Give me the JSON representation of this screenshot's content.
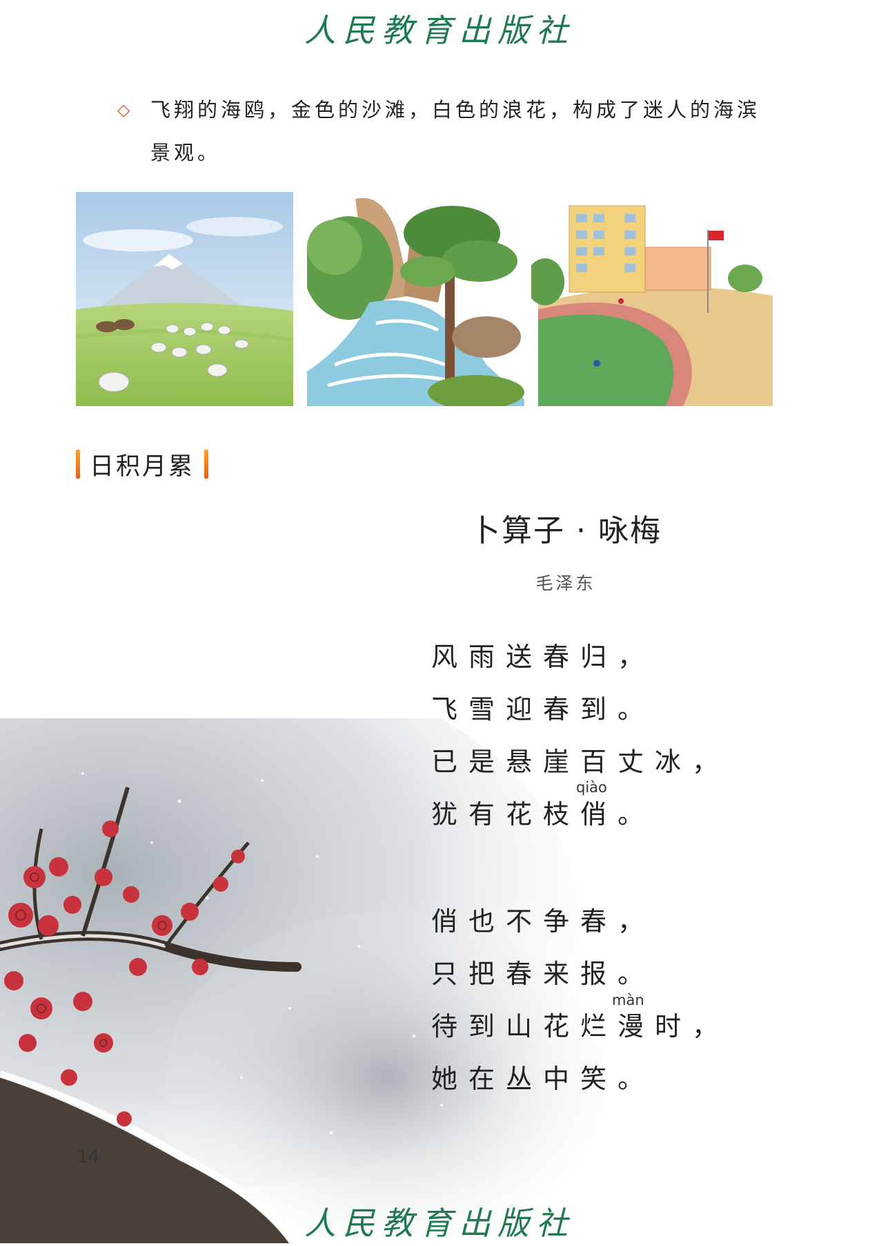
{
  "header": {
    "watermark": "人民教育出版社"
  },
  "exercise": {
    "bullet": "◇",
    "text": "飞翔的海鸥，金色的沙滩，白色的浪花，构成了迷人的海滨景观。"
  },
  "section": {
    "title": "日积月累"
  },
  "poem": {
    "title": "卜算子 · 咏梅",
    "author": "毛泽东",
    "lines": [
      "风雨送春归，",
      "飞雪迎春到。",
      "已是悬崖百丈冰，",
      "犹有花枝俏。",
      "俏也不争春，",
      "只把春来报。",
      "待到山花烂漫时，",
      "她在丛中笑。"
    ],
    "pinyin": {
      "qiao": "qiào",
      "man": "màn"
    }
  },
  "footer": {
    "page_number": "14",
    "watermark": "人民教育出版社"
  },
  "colors": {
    "watermark": "#1f7a4f",
    "bullet": "#e0552b",
    "section_bar": "#f08a24"
  }
}
